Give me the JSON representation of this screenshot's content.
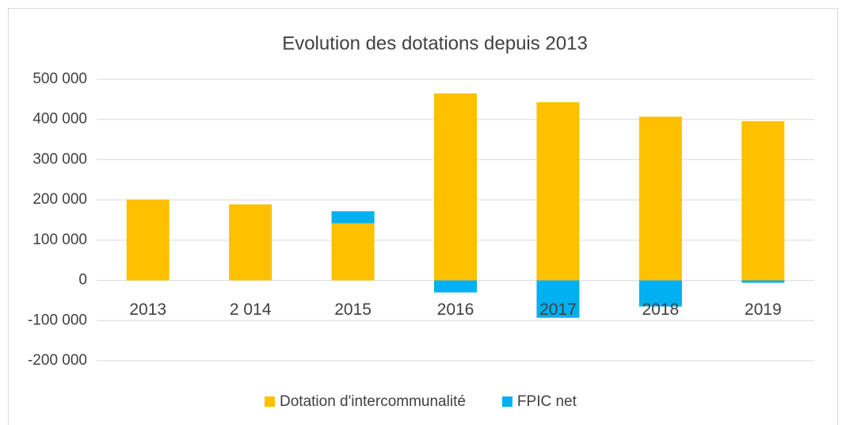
{
  "chart_data": {
    "type": "stacked_bar",
    "title": "Evolution des dotations depuis 2013",
    "categories": [
      "2013",
      "2 014",
      "2015",
      "2016",
      "2017",
      "2018",
      "2019"
    ],
    "series": [
      {
        "name": "Dotation d'intercommunalité",
        "color": "#ffc000",
        "values": [
          201000,
          189000,
          142000,
          465000,
          443000,
          407000,
          396000
        ]
      },
      {
        "name": "FPIC net",
        "color": "#00b0f0",
        "values": [
          0,
          0,
          30000,
          -30000,
          -93000,
          -65000,
          -6000
        ]
      }
    ],
    "ylim": [
      -200000,
      500000
    ],
    "yticks": [
      {
        "value": -200000,
        "label": "-200 000"
      },
      {
        "value": -100000,
        "label": "-100 000"
      },
      0,
      {
        "value": 100000,
        "label": "100 000"
      },
      {
        "value": 200000,
        "label": "200 000"
      },
      {
        "value": 300000,
        "label": "300 000"
      },
      {
        "value": 400000,
        "label": "400 000"
      },
      {
        "value": 500000,
        "label": "500 000"
      }
    ],
    "grid": true,
    "legend": "bottom"
  }
}
